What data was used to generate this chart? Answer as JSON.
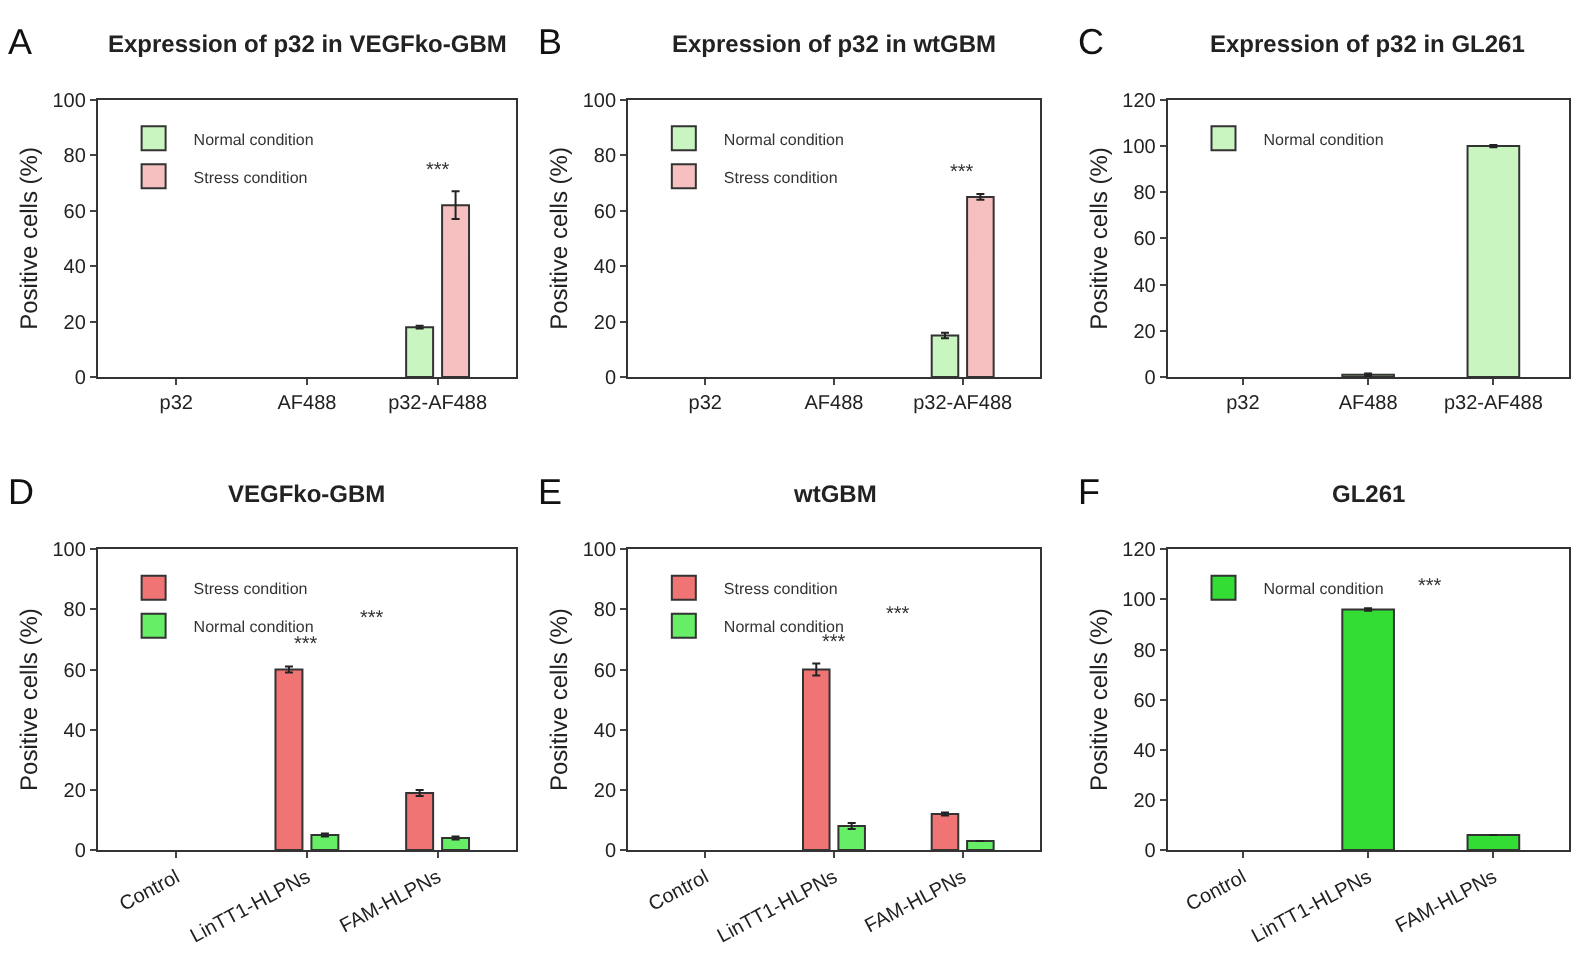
{
  "chart_data": [
    {
      "type": "bar",
      "title": "Expression of p32 in VEGFko-GBM",
      "ylabel": "Positive cells (%)",
      "categories": [
        "p32",
        "AF488",
        "p32-AF488"
      ],
      "ylim": [
        0,
        100
      ],
      "yticks": [
        0,
        20,
        40,
        60,
        80,
        100
      ],
      "legend": "top left",
      "series": [
        {
          "name": "Normal condition",
          "color": "#c8f5c0",
          "values": [
            null,
            null,
            18
          ],
          "errors": [
            null,
            null,
            0.5
          ]
        },
        {
          "name": "Stress condition",
          "color": "#f7c0c0",
          "values": [
            null,
            null,
            62
          ],
          "errors": [
            null,
            null,
            5
          ]
        }
      ],
      "annotations": [
        "A",
        "***"
      ]
    },
    {
      "type": "bar",
      "title": "Expression of p32 in wtGBM",
      "ylabel": "Positive cells (%)",
      "categories": [
        "p32",
        "AF488",
        "p32-AF488"
      ],
      "ylim": [
        0,
        100
      ],
      "yticks": [
        0,
        20,
        40,
        60,
        80,
        100
      ],
      "legend": "top left",
      "series": [
        {
          "name": "Normal condition",
          "color": "#c8f5c0",
          "values": [
            null,
            null,
            15
          ],
          "errors": [
            null,
            null,
            1
          ]
        },
        {
          "name": "Stress condition",
          "color": "#f7c0c0",
          "values": [
            null,
            null,
            65
          ],
          "errors": [
            null,
            null,
            1
          ]
        }
      ],
      "annotations": [
        "B",
        "***"
      ]
    },
    {
      "type": "bar",
      "title": "Expression of p32 in GL261",
      "ylabel": "Positive cells (%)",
      "categories": [
        "p32",
        "AF488",
        "p32-AF488"
      ],
      "ylim": [
        0,
        120
      ],
      "yticks": [
        0,
        20,
        40,
        60,
        80,
        100,
        120
      ],
      "legend": "top left",
      "series": [
        {
          "name": "Normal condition",
          "color": "#c8f5c0",
          "values": [
            null,
            1,
            100
          ],
          "errors": [
            null,
            0.5,
            0.5
          ]
        }
      ],
      "annotations": [
        "C"
      ]
    },
    {
      "type": "bar",
      "title": "VEGFko-GBM",
      "ylabel": "Positive cells (%)",
      "categories": [
        "Control",
        "LinTT1-HLPNs",
        "FAM-HLPNs"
      ],
      "ylim": [
        0,
        100
      ],
      "yticks": [
        0,
        20,
        40,
        60,
        80,
        100
      ],
      "legend": "top left",
      "series": [
        {
          "name": "Stress condition",
          "color": "#f07474",
          "values": [
            null,
            60,
            19
          ],
          "errors": [
            null,
            1,
            1
          ]
        },
        {
          "name": "Normal condition",
          "color": "#66ee66",
          "values": [
            null,
            5,
            4
          ],
          "errors": [
            null,
            0.5,
            0.5
          ]
        }
      ],
      "annotations": [
        "D",
        "***",
        "***"
      ]
    },
    {
      "type": "bar",
      "title": "wtGBM",
      "ylabel": "Positive cells (%)",
      "categories": [
        "Control",
        "LinTT1-HLPNs",
        "FAM-HLPNs"
      ],
      "ylim": [
        0,
        100
      ],
      "yticks": [
        0,
        20,
        40,
        60,
        80,
        100
      ],
      "legend": "top left",
      "series": [
        {
          "name": "Stress condition",
          "color": "#f07474",
          "values": [
            null,
            60,
            12
          ],
          "errors": [
            null,
            2,
            0.5
          ]
        },
        {
          "name": "Normal condition",
          "color": "#66ee66",
          "values": [
            null,
            8,
            3
          ],
          "errors": [
            null,
            1,
            null
          ]
        }
      ],
      "annotations": [
        "E",
        "***",
        "***"
      ]
    },
    {
      "type": "bar",
      "title": "GL261",
      "ylabel": "Positive cells (%)",
      "categories": [
        "Control",
        "LinTT1-HLPNs",
        "FAM-HLPNs"
      ],
      "ylim": [
        0,
        120
      ],
      "yticks": [
        0,
        20,
        40,
        60,
        80,
        100,
        120
      ],
      "legend": "top left",
      "series": [
        {
          "name": "Normal condition",
          "color": "#33dd33",
          "values": [
            null,
            96,
            6
          ],
          "errors": [
            null,
            0.5,
            null
          ]
        }
      ],
      "annotations": [
        "F",
        "***"
      ]
    }
  ]
}
